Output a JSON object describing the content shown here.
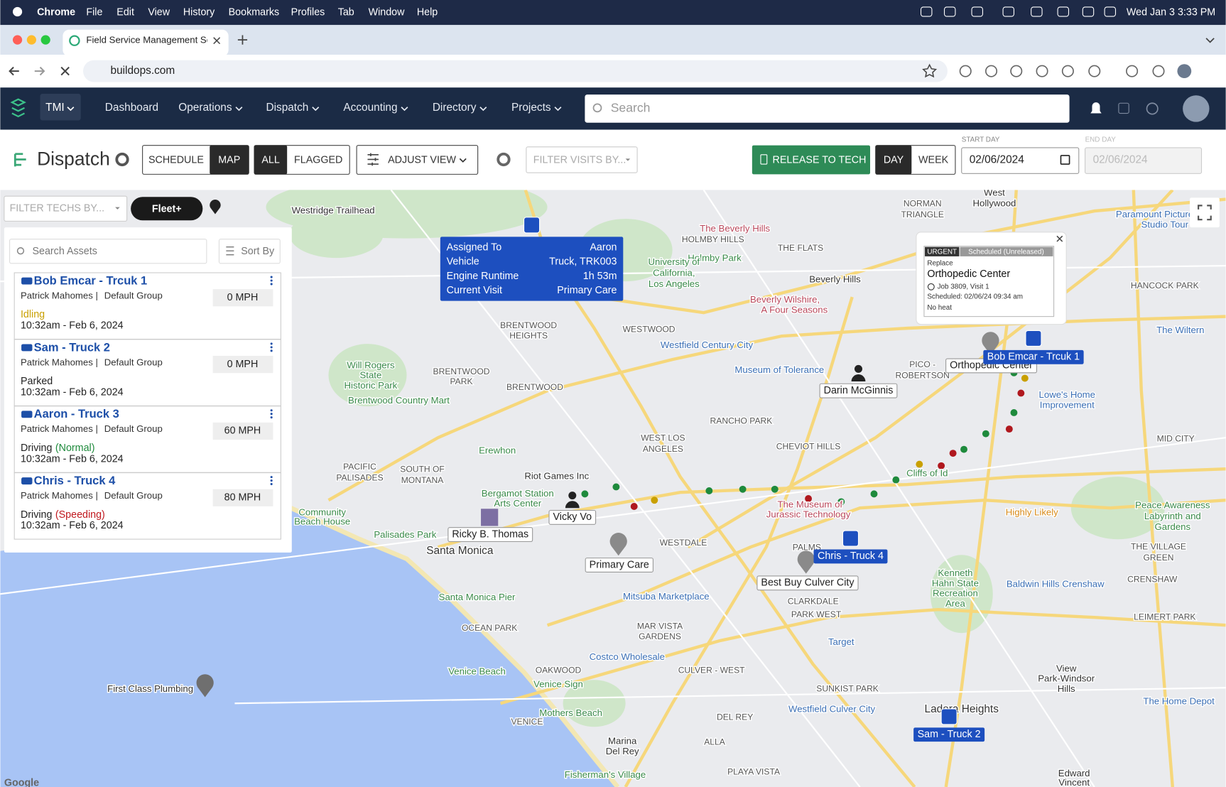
{
  "menu": {
    "app": "Chrome",
    "items": [
      "File",
      "Edit",
      "View",
      "History",
      "Bookmarks",
      "Profiles",
      "Tab",
      "Window",
      "Help"
    ],
    "clock": "Wed Jan 3  3:33 PM"
  },
  "browser": {
    "tab_title": "Field Service Management Sc",
    "url": "buildops.com"
  },
  "nav": {
    "org": "TMI",
    "items": [
      "Dashboard",
      "Operations",
      "Dispatch",
      "Accounting",
      "Directory",
      "Projects"
    ],
    "search": "Search"
  },
  "toolbar": {
    "title": "Dispatch",
    "view_toggle": [
      "SCHEDULE",
      "MAP"
    ],
    "filter_toggle": [
      "ALL",
      "FLAGGED"
    ],
    "adjust_view": "ADJUST VIEW",
    "filter_visits": "FILTER VISITS BY...",
    "release": "RELEASE TO TECH",
    "range_toggle": [
      "DAY",
      "WEEK"
    ],
    "start_label": "START DAY",
    "start_value": "02/06/2024",
    "end_label": "END DAY",
    "end_value": "02/06/2024"
  },
  "panel": {
    "filter_techs": "FILTER TECHS BY...",
    "fleet": "Fleet+",
    "search": "Search Assets",
    "sort": "Sort By",
    "assets": [
      {
        "name": "Bob Emcar - Trcuk 1",
        "driver": "Patrick Mahomes |",
        "group": "Default Group",
        "speed": "0 MPH",
        "status": "Idling",
        "time": "10:32am - Feb 6, 2024"
      },
      {
        "name": "Sam - Truck 2",
        "driver": "Patrick Mahomes |",
        "group": "Default Group",
        "speed": "0 MPH",
        "status": "Parked",
        "time": "10:32am - Feb 6, 2024"
      },
      {
        "name": "Aaron - Truck 3",
        "driver": "Patrick Mahomes |",
        "group": "Default Group",
        "speed": "60 MPH",
        "status": "Driving",
        "detail": "(Normal)",
        "time": "10:32am - Feb 6, 2024"
      },
      {
        "name": "Chris - Truck 4",
        "driver": "Patrick Mahomes |",
        "group": "Default Group",
        "speed": "80 MPH",
        "status": "Driving",
        "detail": "(Speeding)",
        "time": "10:32am - Feb 6, 2024"
      }
    ]
  },
  "tooltip": {
    "rows": [
      {
        "label": "Assigned To",
        "value": "Aaron"
      },
      {
        "label": "Vehicle",
        "value": "Truck, TRK003"
      },
      {
        "label": "Engine Runtime",
        "value": "1h 53m"
      },
      {
        "label": "Current Visit",
        "value": "Primary Care"
      }
    ]
  },
  "visit_card": {
    "priority": "URGENT",
    "state": "Scheduled (Unreleased)",
    "task": "Replace",
    "customer": "Orthopedic Center",
    "job": "Job 3809, Visit 1",
    "scheduled": "Scheduled: 02/06/24 09:34 am",
    "note": "No heat"
  },
  "map": {
    "places": [
      "Westridge Trailhead",
      "The Beverly Hills",
      "HOLMBY HILLS",
      "THE FLATS",
      "NORMAN",
      "TRIANGLE",
      "West",
      "Hollywood",
      "Paramount Pictures",
      "Studio Tour",
      "Holmby Park",
      "University of",
      "California,",
      "Los Angeles",
      "Beverly Hills",
      "Beverly Wilshire,",
      "A Four Seasons",
      "HANCOCK PARK",
      "BRENTWOOD",
      "HEIGHTS",
      "WESTWOOD",
      "The Wiltern",
      "Westfield Century City",
      "Museum of Tolerance",
      "PICO -",
      "ROBERTSON",
      "Will Rogers",
      "State",
      "Historic Park",
      "BRENTWOOD",
      "PARK",
      "BRENTWOOD",
      "Lowe's Home",
      "Improvement",
      "Brentwood Country Mart",
      "RANCHO PARK",
      "WEST LOS",
      "ANGELES",
      "CHEVIOT HILLS",
      "MID CITY",
      "Erewhon",
      "PACIFIC",
      "PALISADES",
      "SOUTH OF",
      "MONTANA",
      "Riot Games Inc",
      "Cliffs of Id",
      "Bergamot Station",
      "Arts Center",
      "The Museum of",
      "Jurassic Technology",
      "Peace Awareness",
      "Labyrinth and",
      "Gardens",
      "Highly Likely",
      "Community",
      "Beach House",
      "Palisades Park",
      "Santa Monica",
      "WESTDALE",
      "PALMS",
      "THE VILLAGE",
      "GREEN",
      "Kenneth",
      "Hahn State",
      "Recreation",
      "Area",
      "CRENSHAW",
      "Baldwin Hills Crenshaw",
      "Santa Monica Pier",
      "Mitsuba Marketplace",
      "CLARKDALE",
      "PARK WEST",
      "LEIMERT PARK",
      "OCEAN PARK",
      "MAR VISTA",
      "GARDENS",
      "Target",
      "Costco Wholesale",
      "View",
      "Park-Windsor",
      "Hills",
      "OAKWOOD",
      "CULVER - WEST",
      "Venice Beach",
      "Venice Sign",
      "First Class Plumbing",
      "SUNKIST PARK",
      "The Home Depot",
      "Westfield Culver City",
      "Ladera Heights",
      "Mothers Beach",
      "DEL REY",
      "VENICE",
      "Marina",
      "Del Rey",
      "ALLA",
      "Fisherman's Village",
      "PLAYA VISTA",
      "Edward",
      "Vincent"
    ],
    "markers": [
      "Orthopedic Center",
      "Darin McGinnis",
      "Vicky Vo",
      "Ricky B. Thomas",
      "Primary Care",
      "Best Buy Culver City"
    ],
    "vehicles": [
      "Bob Emcar - Trcuk 1",
      "Chris - Truck 4",
      "Sam - Truck 2"
    ],
    "attribution": "Google"
  }
}
